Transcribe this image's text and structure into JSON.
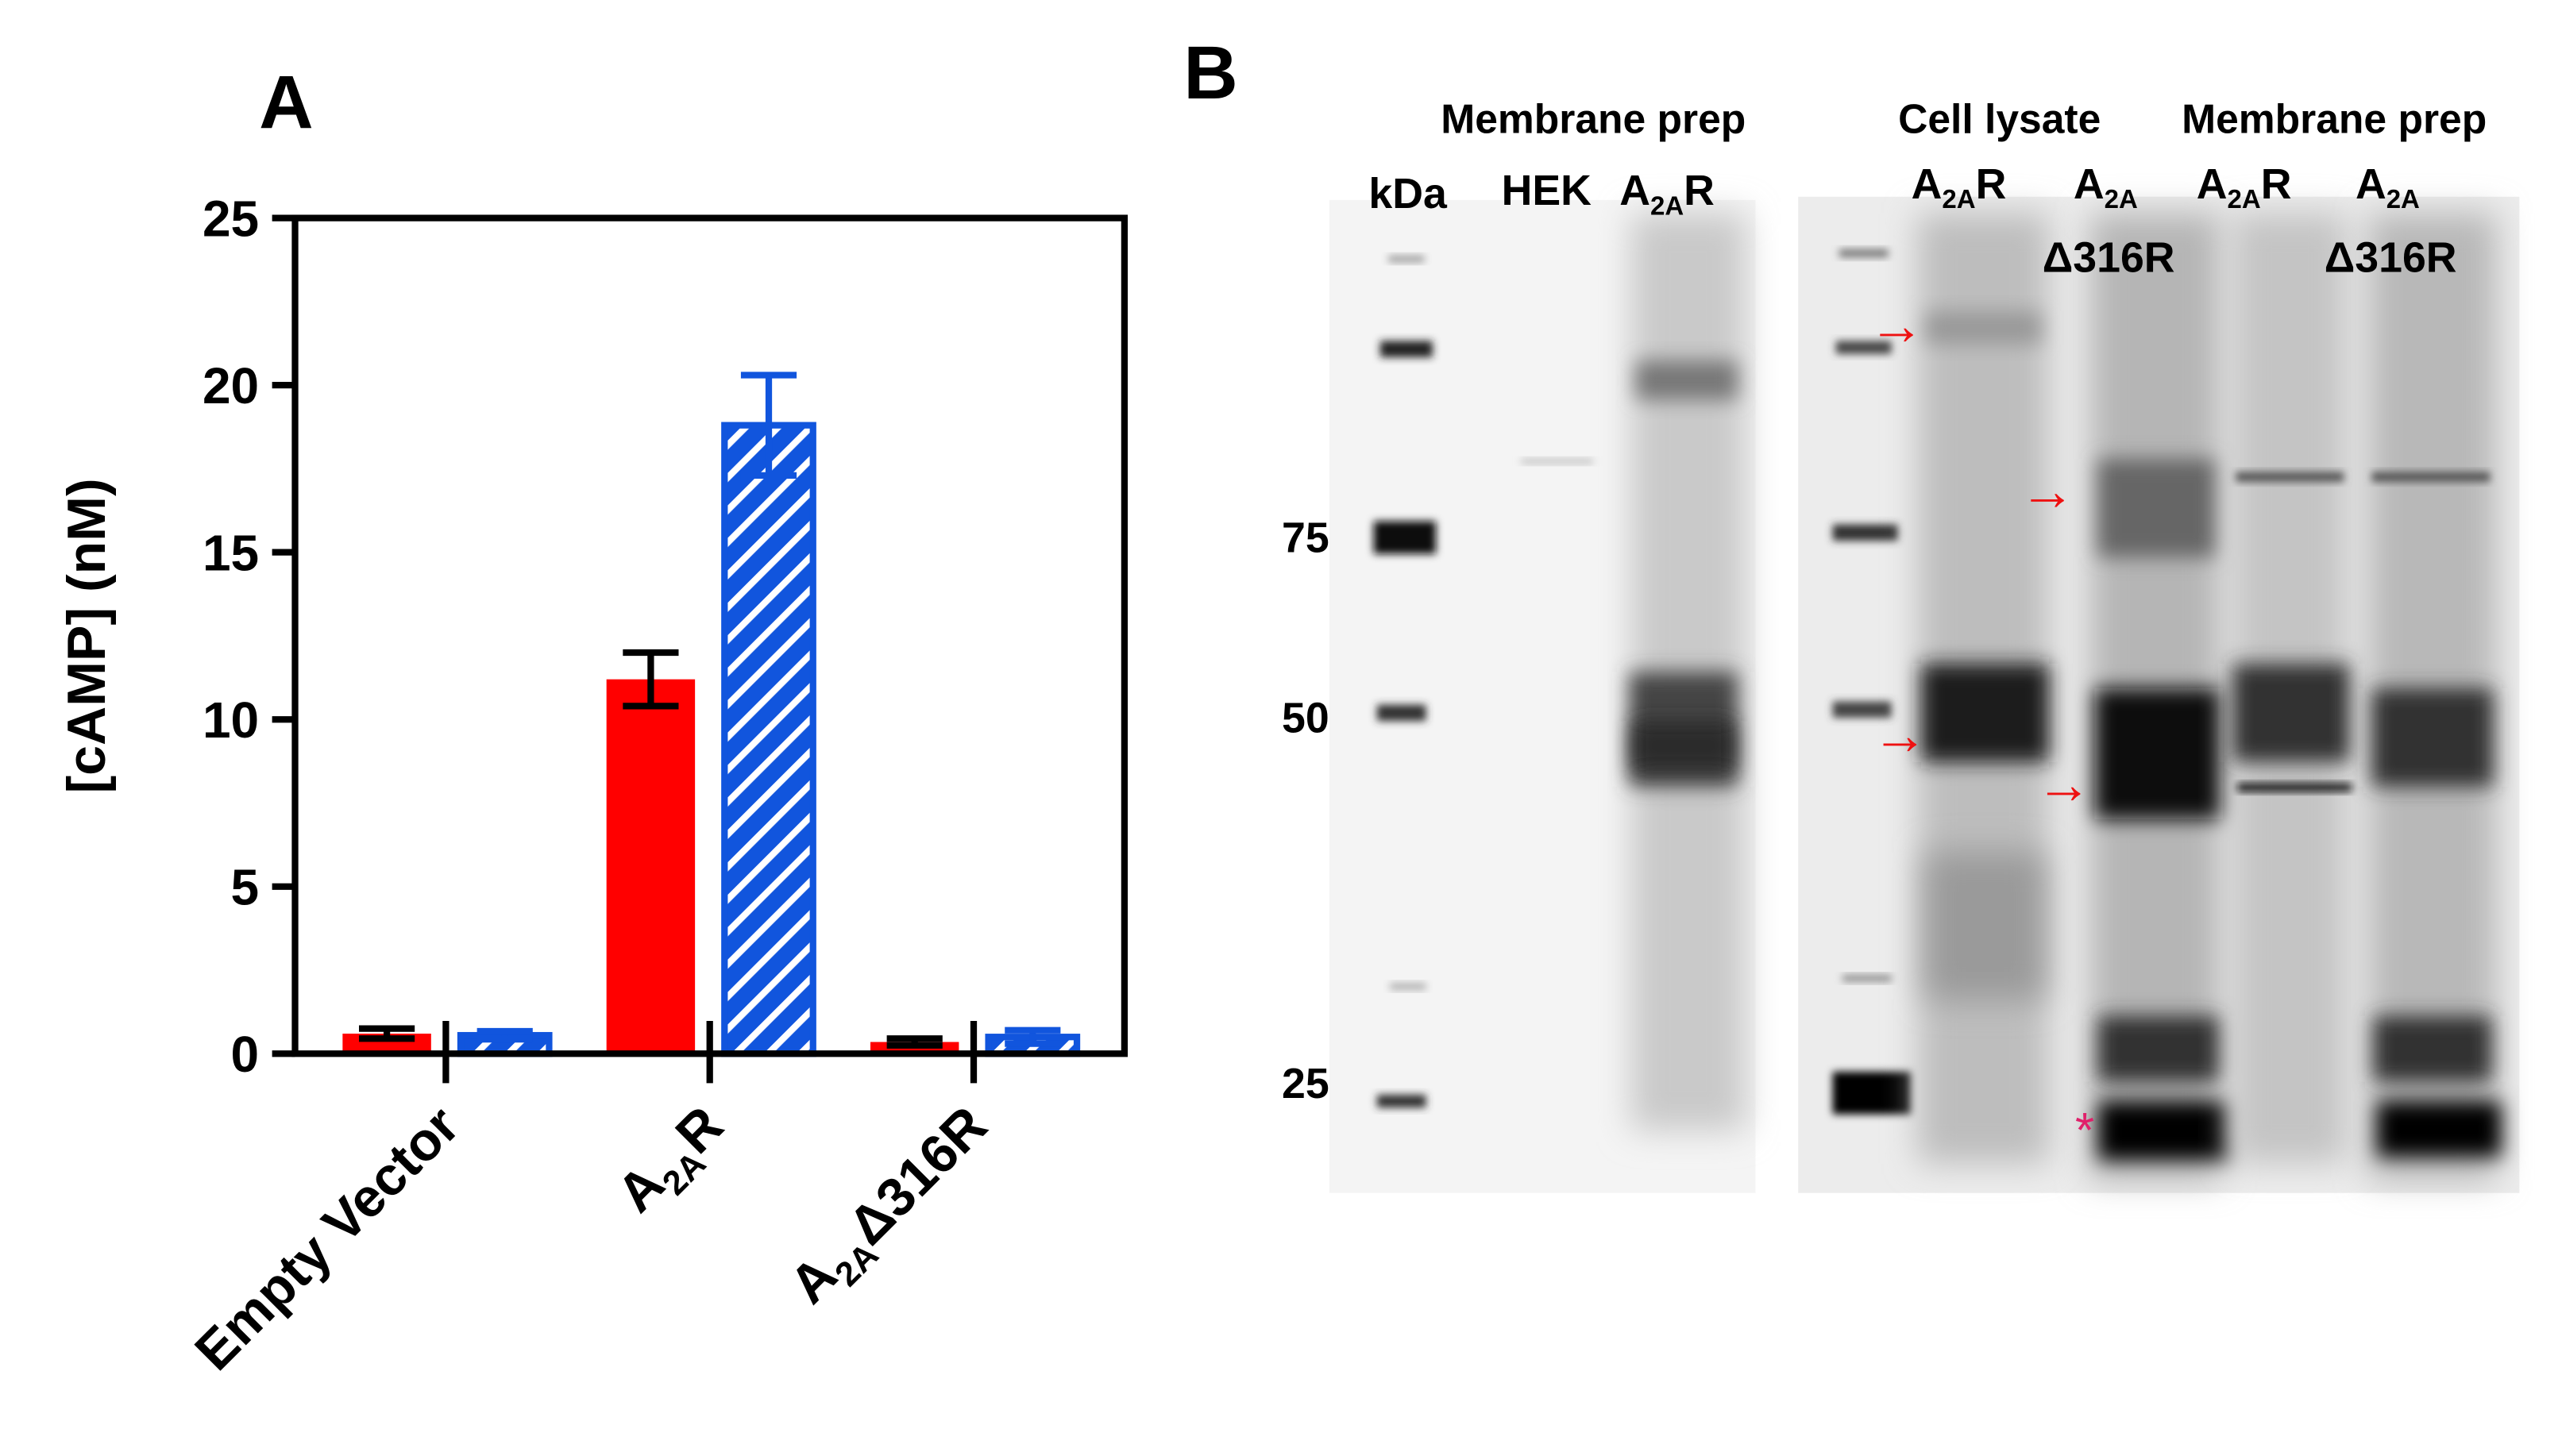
{
  "panels": {
    "a": "A",
    "b": "B"
  },
  "chart_data": {
    "type": "bar",
    "categories": [
      "Empty Vector",
      "A2AR",
      "A2AΔ316R"
    ],
    "category_display": [
      {
        "main": "Empty Vector",
        "sub": "",
        "tail": ""
      },
      {
        "main": "A",
        "sub": "2A",
        "tail": "R"
      },
      {
        "main": "A",
        "sub": "2A",
        "tail": "Δ316R"
      }
    ],
    "ylabel": "[cAMP] (nM)",
    "xlabel": "",
    "title": "",
    "ylim": [
      0,
      25
    ],
    "yticks": [
      "0",
      "5",
      "10",
      "15",
      "20",
      "25"
    ],
    "grid": false,
    "series": [
      {
        "values": [
          0.6,
          11.2,
          0.35
        ],
        "errors": [
          0.15,
          0.8,
          0.1
        ],
        "color": "#ff0000",
        "pattern": "solid"
      },
      {
        "values": [
          0.55,
          18.8,
          0.5
        ],
        "errors": [
          0.12,
          1.5,
          0.2
        ],
        "color": "#1155dd",
        "pattern": "hatched"
      }
    ]
  },
  "blot": {
    "marker_header": "kDa",
    "marker_labels": [
      "75",
      "50",
      "25"
    ],
    "left_group": "Membrane prep",
    "left_lanes": [
      {
        "main": "HEK",
        "sub": "",
        "tail": ""
      },
      {
        "main": "A",
        "sub": "2A",
        "tail": "R"
      }
    ],
    "right_groups": [
      "Cell lysate",
      "Membrane prep"
    ],
    "right_lanes": [
      {
        "line1_main": "A",
        "line1_sub": "2A",
        "line1_tail": "R",
        "line2": ""
      },
      {
        "line1_main": "A",
        "line1_sub": "2A",
        "line1_tail": "",
        "line2": "Δ316R"
      },
      {
        "line1_main": "A",
        "line1_sub": "2A",
        "line1_tail": "R",
        "line2": ""
      },
      {
        "line1_main": "A",
        "line1_sub": "2A",
        "line1_tail": "",
        "line2": "Δ316R"
      }
    ],
    "arrow_symbol": "→",
    "asterisk": "*",
    "arrow_color": "#ee1111",
    "asterisk_color": "#e0206a"
  }
}
